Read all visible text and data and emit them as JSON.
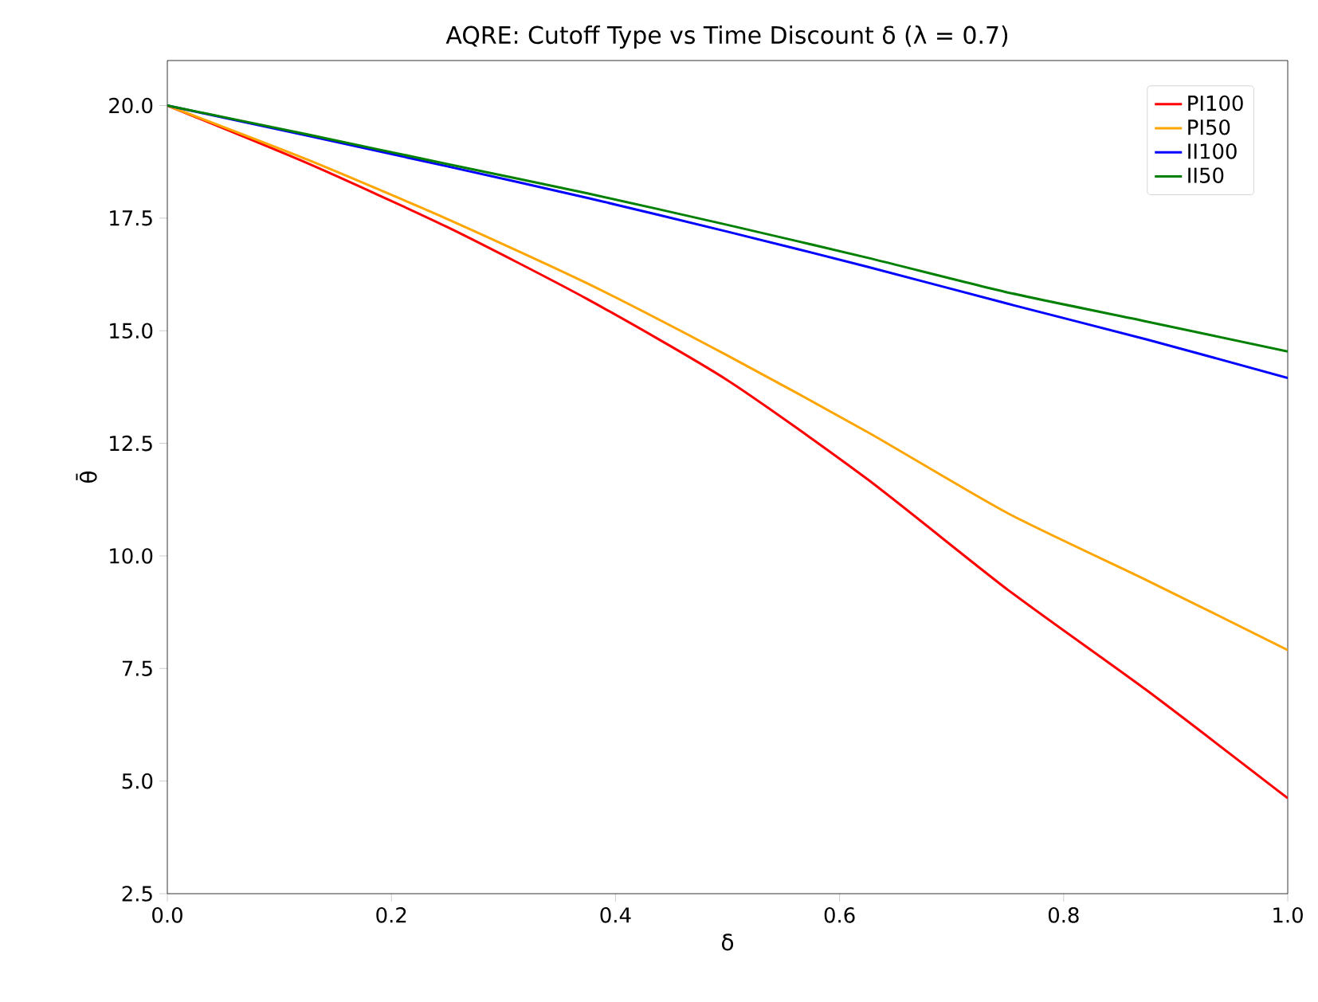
{
  "chart_data": {
    "type": "line",
    "title": "AQRE: Cutoff Type vs Time Discount δ (λ = 0.7)",
    "xlabel": "δ",
    "ylabel": "θ̄",
    "x": [
      0,
      0.125,
      0.25,
      0.375,
      0.5,
      0.625,
      0.75,
      0.875,
      1
    ],
    "series": [
      {
        "name": "PI100",
        "color": "#ff0000",
        "values": [
          20,
          18.72,
          17.3,
          15.7,
          13.9,
          11.7,
          9.25,
          7.0,
          4.62
        ]
      },
      {
        "name": "PI50",
        "color": "#ffa500",
        "values": [
          20,
          18.8,
          17.48,
          16.05,
          14.45,
          12.75,
          10.95,
          9.45,
          7.91
        ]
      },
      {
        "name": "II100",
        "color": "#0000ff",
        "values": [
          20,
          19.33,
          18.65,
          17.95,
          17.2,
          16.42,
          15.6,
          14.8,
          13.95
        ]
      },
      {
        "name": "II50",
        "color": "#008000",
        "values": [
          20,
          19.36,
          18.7,
          18.05,
          17.35,
          16.62,
          15.85,
          15.2,
          14.54
        ]
      }
    ],
    "xlim": [
      0,
      1
    ],
    "ylim": [
      2.5,
      21
    ],
    "xticks": [
      {
        "value": 0,
        "label": "0.0"
      },
      {
        "value": 0.2,
        "label": "0.2"
      },
      {
        "value": 0.4,
        "label": "0.4"
      },
      {
        "value": 0.6,
        "label": "0.6"
      },
      {
        "value": 0.8,
        "label": "0.8"
      },
      {
        "value": 1,
        "label": "1.0"
      }
    ],
    "yticks": [
      {
        "value": 2.5,
        "label": "2.5"
      },
      {
        "value": 5,
        "label": "5.0"
      },
      {
        "value": 7.5,
        "label": "7.5"
      },
      {
        "value": 10,
        "label": "10.0"
      },
      {
        "value": 12.5,
        "label": "12.5"
      },
      {
        "value": 15,
        "label": "15.0"
      },
      {
        "value": 17.5,
        "label": "17.5"
      },
      {
        "value": 20,
        "label": "20.0"
      }
    ],
    "legend": "top right",
    "marker": "none",
    "line_style": "solid"
  }
}
